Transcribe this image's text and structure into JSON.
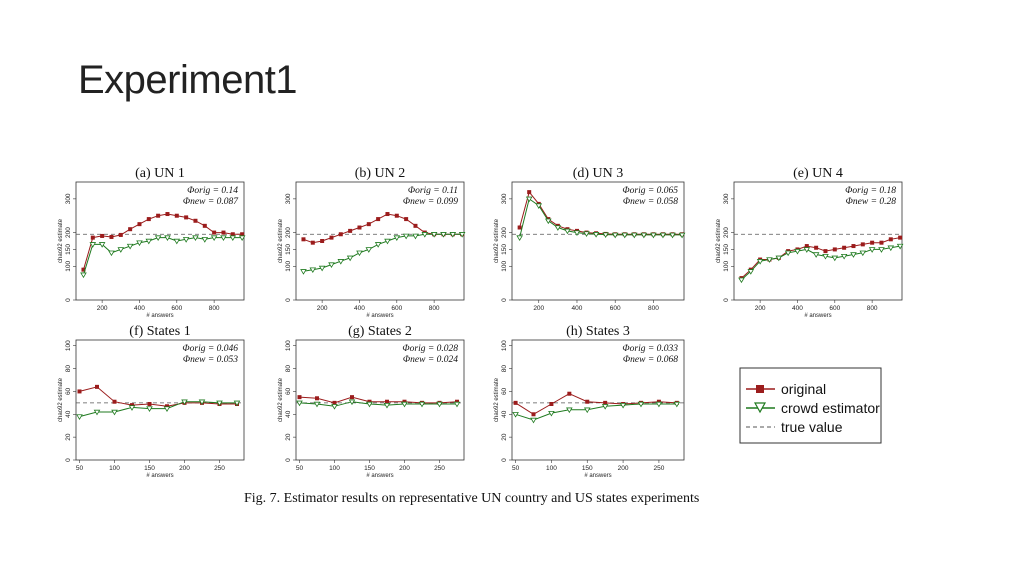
{
  "slide": {
    "title": "Experiment1"
  },
  "caption": "Fig. 7.   Estimator results on representative UN country and US states experiments",
  "legend": {
    "original": "original",
    "crowd": "crowd estimator",
    "true": "true value"
  },
  "colors": {
    "original": "#9b1c1c",
    "crowd": "#1f7a1f",
    "true": "#555555"
  },
  "chart_data": [
    {
      "type": "line",
      "title": "(a) UN 1",
      "phi_orig": "Φorig = 0.14",
      "phi_new": "Φnew = 0.087",
      "xlabel": "# answers",
      "ylabel": "chao92 estimate",
      "xlim": [
        60,
        960
      ],
      "ylim": [
        0,
        350
      ],
      "xticks": [
        200,
        400,
        600,
        800
      ],
      "yticks": [
        0,
        100,
        150,
        200,
        300
      ],
      "true_value": 195,
      "x": [
        100,
        150,
        200,
        250,
        300,
        350,
        400,
        450,
        500,
        550,
        600,
        650,
        700,
        750,
        800,
        850,
        900,
        950
      ],
      "series": [
        {
          "name": "original",
          "values": [
            90,
            185,
            190,
            187,
            193,
            210,
            225,
            240,
            250,
            255,
            250,
            245,
            235,
            220,
            200,
            200,
            195,
            195
          ]
        },
        {
          "name": "crowd estimator",
          "values": [
            75,
            165,
            165,
            140,
            150,
            160,
            170,
            175,
            185,
            185,
            175,
            180,
            185,
            180,
            185,
            185,
            185,
            185
          ]
        }
      ]
    },
    {
      "type": "line",
      "title": "(b) UN 2",
      "phi_orig": "Φorig = 0.11",
      "phi_new": "Φnew = 0.099",
      "xlabel": "# answers",
      "ylabel": "chao92 estimate",
      "xlim": [
        60,
        960
      ],
      "ylim": [
        0,
        350
      ],
      "xticks": [
        200,
        400,
        600,
        800
      ],
      "yticks": [
        0,
        100,
        150,
        200,
        300
      ],
      "true_value": 195,
      "x": [
        100,
        150,
        200,
        250,
        300,
        350,
        400,
        450,
        500,
        550,
        600,
        650,
        700,
        750,
        800,
        850,
        900,
        950
      ],
      "series": [
        {
          "name": "original",
          "values": [
            180,
            170,
            175,
            185,
            195,
            205,
            215,
            225,
            240,
            255,
            250,
            240,
            220,
            200,
            195,
            195,
            195,
            195
          ]
        },
        {
          "name": "crowd estimator",
          "values": [
            85,
            90,
            95,
            105,
            115,
            125,
            140,
            150,
            165,
            175,
            185,
            190,
            190,
            195,
            195,
            195,
            195,
            195
          ]
        }
      ]
    },
    {
      "type": "line",
      "title": "(d) UN 3",
      "phi_orig": "Φorig = 0.065",
      "phi_new": "Φnew = 0.058",
      "xlabel": "",
      "ylabel": "chao92 estimate",
      "xlim": [
        60,
        960
      ],
      "ylim": [
        0,
        350
      ],
      "xticks": [
        200,
        400,
        600,
        800
      ],
      "yticks": [
        0,
        100,
        150,
        200,
        300
      ],
      "true_value": 195,
      "x": [
        100,
        150,
        200,
        250,
        300,
        350,
        400,
        450,
        500,
        550,
        600,
        650,
        700,
        750,
        800,
        850,
        900,
        950
      ],
      "series": [
        {
          "name": "original",
          "values": [
            215,
            320,
            285,
            240,
            220,
            210,
            205,
            200,
            198,
            196,
            195,
            195,
            195,
            195,
            195,
            195,
            195,
            195
          ]
        },
        {
          "name": "crowd estimator",
          "values": [
            185,
            300,
            280,
            235,
            215,
            205,
            200,
            197,
            195,
            194,
            193,
            193,
            193,
            193,
            193,
            193,
            193,
            193
          ]
        }
      ]
    },
    {
      "type": "line",
      "title": "(e) UN 4",
      "phi_orig": "Φorig = 0.18",
      "phi_new": "Φnew = 0.28",
      "xlabel": "# answers",
      "ylabel": "chao92 estimate",
      "xlim": [
        60,
        960
      ],
      "ylim": [
        0,
        350
      ],
      "xticks": [
        200,
        400,
        600,
        800
      ],
      "yticks": [
        0,
        100,
        150,
        200,
        300
      ],
      "true_value": 195,
      "x": [
        100,
        150,
        200,
        250,
        300,
        350,
        400,
        450,
        500,
        550,
        600,
        650,
        700,
        750,
        800,
        850,
        900,
        950
      ],
      "series": [
        {
          "name": "original",
          "values": [
            65,
            90,
            120,
            120,
            125,
            145,
            150,
            160,
            155,
            145,
            150,
            155,
            160,
            165,
            170,
            170,
            180,
            185
          ]
        },
        {
          "name": "crowd estimator",
          "values": [
            60,
            85,
            115,
            120,
            125,
            140,
            145,
            150,
            135,
            130,
            125,
            130,
            135,
            140,
            150,
            150,
            155,
            160
          ]
        }
      ]
    },
    {
      "type": "line",
      "title": "(f) States 1",
      "phi_orig": "Φorig = 0.046",
      "phi_new": "Φnew = 0.053",
      "xlabel": "# answers",
      "ylabel": "chao92 estimate",
      "xlim": [
        45,
        285
      ],
      "ylim": [
        0,
        105
      ],
      "xticks": [
        50,
        100,
        150,
        200,
        250
      ],
      "yticks": [
        0,
        20,
        40,
        60,
        80,
        100
      ],
      "true_value": 50,
      "x": [
        50,
        75,
        100,
        125,
        150,
        175,
        200,
        225,
        250,
        275
      ],
      "series": [
        {
          "name": "original",
          "values": [
            60,
            64,
            51,
            48,
            49,
            47,
            50,
            50,
            49,
            49
          ]
        },
        {
          "name": "crowd estimator",
          "values": [
            38,
            42,
            42,
            46,
            45,
            45,
            51,
            51,
            50,
            50
          ]
        }
      ]
    },
    {
      "type": "line",
      "title": "(g) States 2",
      "phi_orig": "Φorig = 0.028",
      "phi_new": "Φnew = 0.024",
      "xlabel": "# answers",
      "ylabel": "chao92 estimate",
      "xlim": [
        45,
        285
      ],
      "ylim": [
        0,
        105
      ],
      "xticks": [
        50,
        100,
        150,
        200,
        250
      ],
      "yticks": [
        0,
        20,
        40,
        60,
        80,
        100
      ],
      "true_value": 50,
      "x": [
        50,
        75,
        100,
        125,
        150,
        175,
        200,
        225,
        250,
        275
      ],
      "series": [
        {
          "name": "original",
          "values": [
            55,
            54,
            50,
            55,
            51,
            51,
            51,
            50,
            50,
            51
          ]
        },
        {
          "name": "crowd estimator",
          "values": [
            50,
            49,
            47,
            51,
            49,
            48,
            49,
            49,
            49,
            49
          ]
        }
      ]
    },
    {
      "type": "line",
      "title": "(h) States 3",
      "phi_orig": "Φorig = 0.033",
      "phi_new": "Φnew = 0.068",
      "xlabel": "# answers",
      "ylabel": "chao92 estimate",
      "xlim": [
        45,
        285
      ],
      "ylim": [
        0,
        105
      ],
      "xticks": [
        50,
        100,
        150,
        200,
        250
      ],
      "yticks": [
        0,
        20,
        40,
        60,
        80,
        100
      ],
      "true_value": 50,
      "x": [
        50,
        75,
        100,
        125,
        150,
        175,
        200,
        225,
        250,
        275
      ],
      "series": [
        {
          "name": "original",
          "values": [
            50,
            40,
            49,
            58,
            51,
            50,
            49,
            50,
            51,
            50
          ]
        },
        {
          "name": "crowd estimator",
          "values": [
            40,
            35,
            41,
            44,
            44,
            47,
            48,
            49,
            49,
            49
          ]
        }
      ]
    }
  ]
}
